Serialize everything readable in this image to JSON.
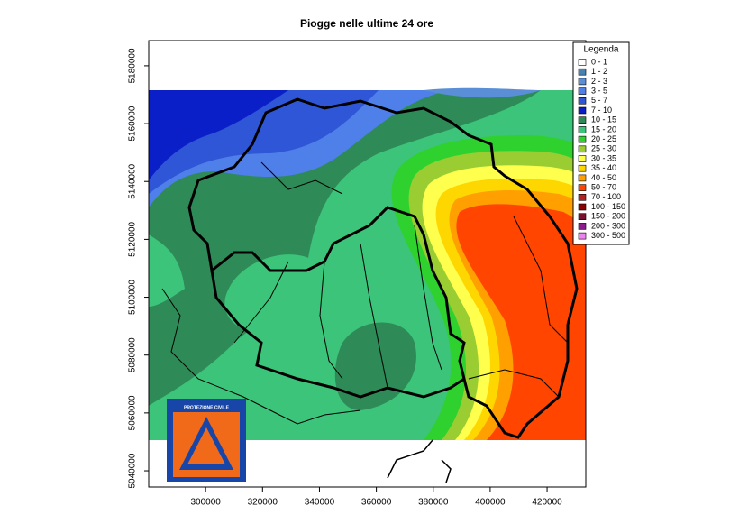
{
  "title": "Piogge nelle ultime 24 ore",
  "x_axis": {
    "lim": [
      280000,
      433600
    ],
    "ticks": [
      300000,
      320000,
      340000,
      360000,
      380000,
      400000,
      420000
    ]
  },
  "y_axis": {
    "lim": [
      5034400,
      5188700
    ],
    "ticks": [
      5040000,
      5060000,
      5080000,
      5100000,
      5120000,
      5140000,
      5160000,
      5180000
    ]
  },
  "legend": {
    "title": "Legenda",
    "items": [
      {
        "label": "0 - 1",
        "color": "#ffffff"
      },
      {
        "label": "1 - 2",
        "color": "#4682b4"
      },
      {
        "label": "2 - 3",
        "color": "#5a8fd8"
      },
      {
        "label": "3 - 5",
        "color": "#4f7fe8"
      },
      {
        "label": "5 - 7",
        "color": "#2f56d6"
      },
      {
        "label": "7 - 10",
        "color": "#0a1fc8"
      },
      {
        "label": "10 - 15",
        "color": "#2e8b57"
      },
      {
        "label": "15 - 20",
        "color": "#3cc47a"
      },
      {
        "label": "20 - 25",
        "color": "#2ed12e"
      },
      {
        "label": "25 - 30",
        "color": "#9acd32"
      },
      {
        "label": "30 - 35",
        "color": "#ffff4d"
      },
      {
        "label": "35 - 40",
        "color": "#ffd700"
      },
      {
        "label": "40 - 50",
        "color": "#ffa000"
      },
      {
        "label": "50 - 70",
        "color": "#ff4500"
      },
      {
        "label": "70 - 100",
        "color": "#b22222"
      },
      {
        "label": "100 - 150",
        "color": "#8b0000"
      },
      {
        "label": "150 - 200",
        "color": "#7a1030"
      },
      {
        "label": "200 - 300",
        "color": "#8b1a8b"
      },
      {
        "label": "300 - 500",
        "color": "#ee82ee"
      }
    ]
  },
  "logo": {
    "text": "PROTEZIONE CIVILE"
  }
}
